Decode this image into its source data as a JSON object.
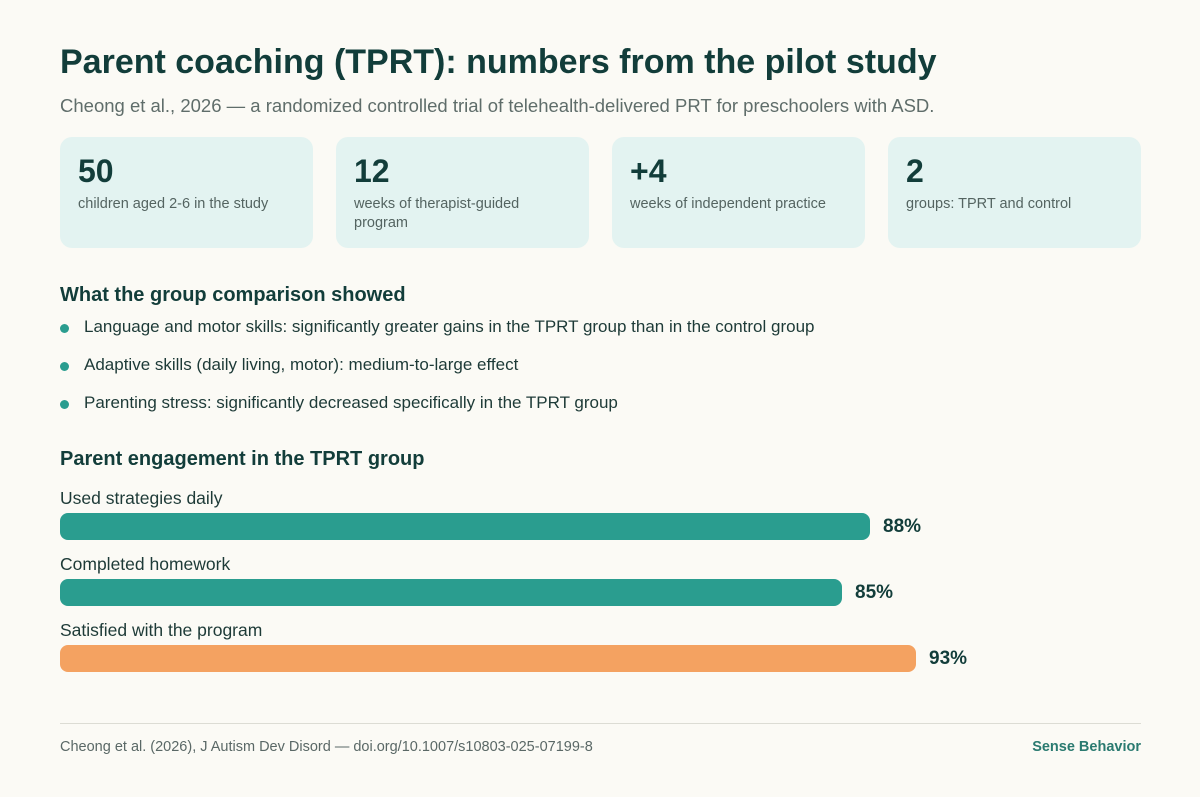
{
  "header": {
    "title": "Parent coaching (TPRT): numbers from the pilot study",
    "subtitle": "Cheong et al., 2026 — a randomized controlled trial of telehealth-delivered PRT for preschoolers with ASD."
  },
  "stats": [
    {
      "value": "50",
      "label": "children aged 2-6 in the study"
    },
    {
      "value": "12",
      "label": "weeks of therapist-guided program"
    },
    {
      "value": "+4",
      "label": "weeks of independent practice"
    },
    {
      "value": "2",
      "label": "groups: TPRT and control"
    }
  ],
  "findings": {
    "title": "What the group comparison showed",
    "items": [
      "Language and motor skills: significantly greater gains in the TPRT group than in the control group",
      "Adaptive skills (daily living, motor): medium-to-large effect",
      "Parenting stress: significantly decreased specifically in the TPRT group"
    ]
  },
  "engagement": {
    "title": "Parent engagement in the TPRT group"
  },
  "chart_data": {
    "type": "bar",
    "orientation": "horizontal",
    "categories": [
      "Used strategies daily",
      "Completed homework",
      "Satisfied with the program"
    ],
    "values": [
      88,
      85,
      93
    ],
    "value_labels": [
      "88%",
      "85%",
      "93%"
    ],
    "colors": [
      "#2a9d8f",
      "#2a9d8f",
      "#f4a261"
    ],
    "xlim": [
      0,
      100
    ],
    "grid": false
  },
  "footer": {
    "source": "Cheong et al. (2026), J Autism Dev Disord — doi.org/10.1007/s10803-025-07199-8",
    "brand": "Sense Behavior"
  }
}
